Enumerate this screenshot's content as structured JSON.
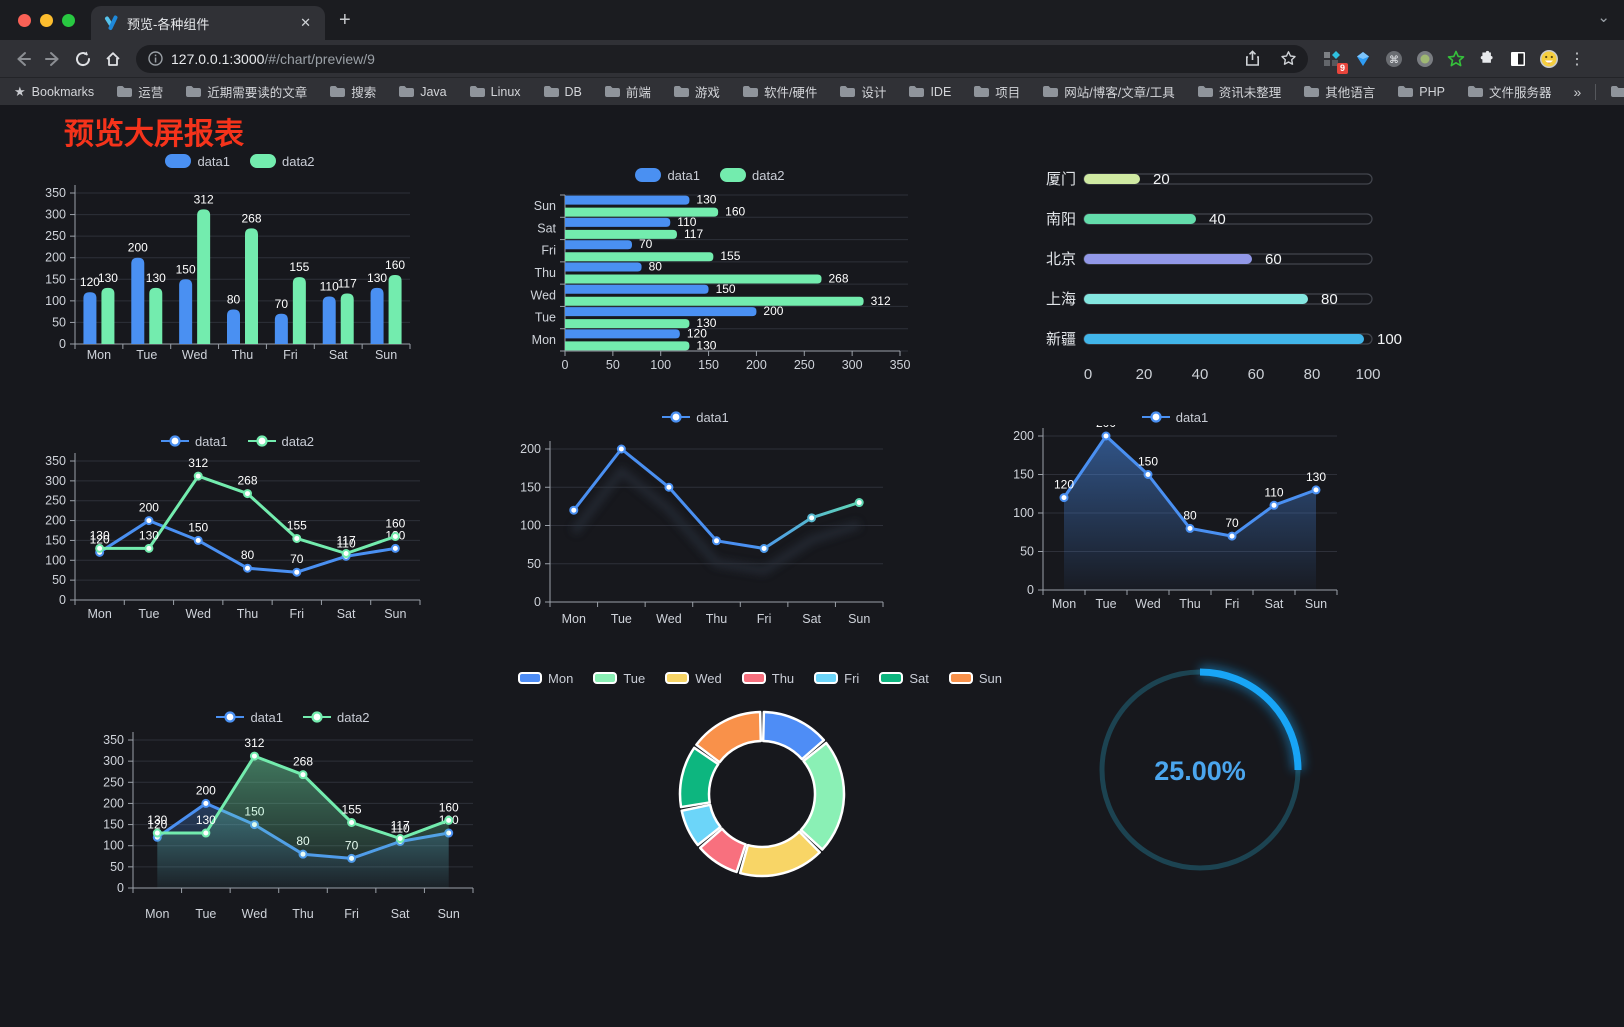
{
  "browser": {
    "tab_title": "预览-各种组件",
    "url": {
      "host": "127.0.0.1:3000",
      "path": "/#/chart/preview/9"
    },
    "bookmarks": {
      "label": "Bookmarks",
      "folders": [
        "运营",
        "近期需要读的文章",
        "搜索",
        "Java",
        "Linux",
        "DB",
        "前端",
        "游戏",
        "软件/硬件",
        "设计",
        "IDE",
        "项目",
        "网站/博客/文章/工具",
        "资讯未整理",
        "其他语言",
        "PHP",
        "文件服务器"
      ],
      "overflow": "»",
      "other": "其他书签"
    },
    "extension_badge": "9"
  },
  "icons": {
    "close": "✕",
    "new_tab": "+",
    "menu_dots": "⋮",
    "chevron": "⌄",
    "bookmark_star": "★"
  },
  "page": {
    "title": "预览大屏报表",
    "title_color": "#f5331b",
    "background": "#17181d"
  },
  "chart_data": [
    {
      "id": "grouped-bar",
      "type": "bar",
      "categories": [
        "Mon",
        "Tue",
        "Wed",
        "Thu",
        "Fri",
        "Sat",
        "Sun"
      ],
      "series": [
        {
          "name": "data1",
          "color": "#4a90f2",
          "values": [
            120,
            200,
            150,
            80,
            70,
            110,
            130
          ]
        },
        {
          "name": "data2",
          "color": "#73ecae",
          "values": [
            130,
            130,
            312,
            268,
            155,
            117,
            160
          ]
        }
      ],
      "ylim": [
        0,
        350
      ],
      "yticks": [
        0,
        50,
        100,
        150,
        200,
        250,
        300,
        350
      ],
      "value_labels": true,
      "legend_position": "top",
      "grid": true
    },
    {
      "id": "horizontal-grouped-bar",
      "type": "bar-horizontal",
      "categories": [
        "Mon",
        "Tue",
        "Wed",
        "Thu",
        "Fri",
        "Sat",
        "Sun"
      ],
      "series": [
        {
          "name": "data1",
          "color": "#4a90f2",
          "values": [
            120,
            200,
            150,
            80,
            70,
            110,
            130
          ]
        },
        {
          "name": "data2",
          "color": "#73ecae",
          "values": [
            130,
            130,
            312,
            268,
            155,
            117,
            160
          ]
        }
      ],
      "xlim": [
        0,
        350
      ],
      "xticks": [
        0,
        50,
        100,
        150,
        200,
        250,
        300,
        350
      ],
      "value_labels": true,
      "legend_position": "top",
      "grid": true
    },
    {
      "id": "city-progress-bars",
      "type": "bar-horizontal",
      "categories": [
        "厦门",
        "南阳",
        "北京",
        "上海",
        "新疆"
      ],
      "values": [
        20,
        40,
        60,
        80,
        100
      ],
      "colors": [
        "#cfe9a2",
        "#63dcab",
        "#9298e8",
        "#84e6e0",
        "#41b5e9"
      ],
      "xlim": [
        0,
        100
      ],
      "xticks": [
        0,
        20,
        40,
        60,
        80,
        100
      ],
      "value_labels": true,
      "legend_position": "none"
    },
    {
      "id": "two-series-line",
      "type": "line",
      "categories": [
        "Mon",
        "Tue",
        "Wed",
        "Thu",
        "Fri",
        "Sat",
        "Sun"
      ],
      "series": [
        {
          "name": "data1",
          "color": "#4a90f2",
          "values": [
            120,
            200,
            150,
            80,
            70,
            110,
            130
          ]
        },
        {
          "name": "data2",
          "color": "#73ecae",
          "values": [
            130,
            130,
            312,
            268,
            155,
            117,
            160
          ]
        }
      ],
      "ylim": [
        0,
        350
      ],
      "yticks": [
        0,
        50,
        100,
        150,
        200,
        250,
        300,
        350
      ],
      "value_labels": true,
      "legend_position": "top",
      "grid": true
    },
    {
      "id": "gradient-line",
      "type": "line",
      "categories": [
        "Mon",
        "Tue",
        "Wed",
        "Thu",
        "Fri",
        "Sat",
        "Sun"
      ],
      "series": [
        {
          "name": "data1",
          "color": "#4a90f2",
          "gradient": [
            "#4a90f2",
            "#65e7a7"
          ],
          "values": [
            120,
            200,
            150,
            80,
            70,
            110,
            130
          ]
        }
      ],
      "ylim": [
        0,
        200
      ],
      "yticks": [
        0,
        50,
        100,
        150,
        200
      ],
      "value_labels": false,
      "legend_position": "top",
      "grid": true
    },
    {
      "id": "area-line",
      "type": "area",
      "categories": [
        "Mon",
        "Tue",
        "Wed",
        "Thu",
        "Fri",
        "Sat",
        "Sun"
      ],
      "series": [
        {
          "name": "data1",
          "color": "#4a90f2",
          "area": true,
          "values": [
            120,
            200,
            150,
            80,
            70,
            110,
            130
          ]
        }
      ],
      "ylim": [
        0,
        200
      ],
      "yticks": [
        0,
        50,
        100,
        150,
        200
      ],
      "value_labels": true,
      "legend_position": "top",
      "grid": true
    },
    {
      "id": "two-series-area",
      "type": "area",
      "categories": [
        "Mon",
        "Tue",
        "Wed",
        "Thu",
        "Fri",
        "Sat",
        "Sun"
      ],
      "series": [
        {
          "name": "data1",
          "color": "#4a90f2",
          "area": true,
          "values": [
            120,
            200,
            150,
            80,
            70,
            110,
            130
          ]
        },
        {
          "name": "data2",
          "color": "#73ecae",
          "area": true,
          "values": [
            130,
            130,
            312,
            268,
            155,
            117,
            160
          ]
        }
      ],
      "ylim": [
        0,
        350
      ],
      "yticks": [
        0,
        50,
        100,
        150,
        200,
        250,
        300,
        350
      ],
      "value_labels": true,
      "legend_position": "top",
      "grid": true
    },
    {
      "id": "donut",
      "type": "pie",
      "categories": [
        "Mon",
        "Tue",
        "Wed",
        "Thu",
        "Fri",
        "Sat",
        "Sun"
      ],
      "values": [
        120,
        200,
        150,
        80,
        70,
        110,
        130
      ],
      "colors": [
        "#4e8df6",
        "#8af0b5",
        "#f8d566",
        "#f8707e",
        "#6cd5f9",
        "#0db67f",
        "#f9914a"
      ],
      "legend_position": "top"
    },
    {
      "id": "gauge",
      "type": "gauge",
      "value": 25,
      "label": "25.00%",
      "color": "#18a5f6",
      "track_color": "#1c4351"
    }
  ]
}
